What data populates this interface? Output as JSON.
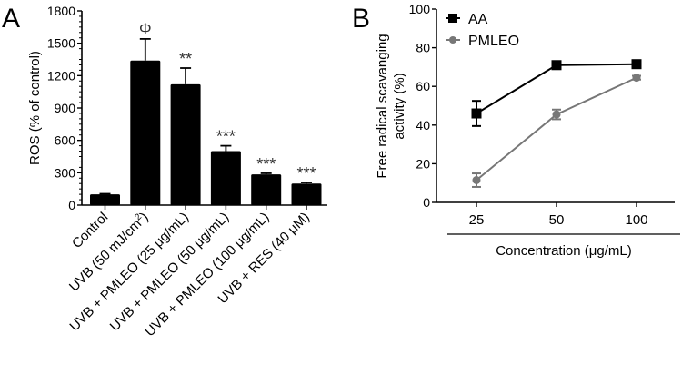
{
  "chart_data": [
    {
      "panel": "A",
      "type": "bar",
      "ylabel": "ROS (% of control)",
      "ylim": [
        0,
        1800
      ],
      "yticks": [
        0,
        300,
        600,
        900,
        1200,
        1500,
        1800
      ],
      "categories": [
        "Control",
        "UVB (50 mJ/cm²)",
        "UVB + PMLEO (25 μg/mL)",
        "UVB + PMLEO (50 μg/mL)",
        "UVB + PMLEO (100 μg/mL)",
        "UVB + RES (40 μM)"
      ],
      "values": [
        100,
        1340,
        1120,
        500,
        285,
        200
      ],
      "errors": [
        5,
        200,
        150,
        50,
        10,
        10
      ],
      "annotations": [
        "",
        "Φ",
        "**",
        "***",
        "***",
        "***"
      ],
      "color": "#000000"
    },
    {
      "panel": "B",
      "type": "line",
      "xlabel": "Concentration (μg/mL)",
      "ylabel": "Free radical scavanging activity (%)",
      "ylim": [
        0,
        100
      ],
      "yticks": [
        0,
        20,
        40,
        60,
        80,
        100
      ],
      "categories": [
        "25",
        "50",
        "100"
      ],
      "legend": "top-left",
      "series": [
        {
          "name": "AA",
          "values": [
            46,
            71,
            71.5
          ],
          "errors": [
            6.5,
            1.5,
            1.5
          ],
          "color": "#000000",
          "marker": "square"
        },
        {
          "name": "PMLEO",
          "values": [
            11.5,
            45.5,
            64.5
          ],
          "errors": [
            3.5,
            2.5,
            1
          ],
          "color": "#777777",
          "marker": "circle"
        }
      ]
    }
  ]
}
